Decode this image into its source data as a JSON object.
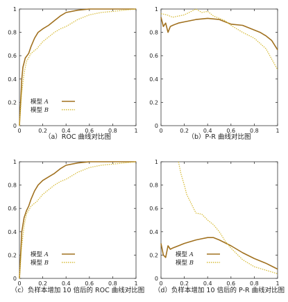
{
  "colors": {
    "A": "#a0701e",
    "B": "#d8bd3c",
    "axis": "#333333"
  },
  "legend": {
    "label_A": "模型",
    "var_A": "A",
    "label_B": "模型",
    "var_B": "B"
  },
  "chart_data": [
    {
      "type": "line",
      "caption": "（a）ROC 曲线对比图",
      "xlim": [
        0,
        1
      ],
      "ylim": [
        0,
        1
      ],
      "xticks": [
        "0",
        "0.2",
        "0.4",
        "0.6",
        "0.8",
        "1"
      ],
      "yticks": [
        "0",
        "0.2",
        "0.4",
        "0.6",
        "0.8",
        "1"
      ],
      "legend_position": "bottom-left",
      "series": [
        {
          "name": "模型 A",
          "style": "solid",
          "x": [
            0,
            0.01,
            0.02,
            0.03,
            0.05,
            0.08,
            0.1,
            0.13,
            0.16,
            0.2,
            0.25,
            0.3,
            0.35,
            0.4,
            0.5,
            0.6,
            0.7,
            0.8,
            0.9,
            1.0
          ],
          "y": [
            0.0,
            0.2,
            0.4,
            0.5,
            0.58,
            0.62,
            0.68,
            0.75,
            0.8,
            0.83,
            0.86,
            0.9,
            0.94,
            0.97,
            0.99,
            1.0,
            1.0,
            1.0,
            1.0,
            1.0
          ]
        },
        {
          "name": "模型 B",
          "style": "dotted",
          "x": [
            0,
            0.02,
            0.04,
            0.06,
            0.1,
            0.15,
            0.2,
            0.25,
            0.3,
            0.35,
            0.4,
            0.45,
            0.5,
            0.6,
            0.7,
            0.8,
            0.9,
            1.0
          ],
          "y": [
            0.0,
            0.28,
            0.45,
            0.55,
            0.62,
            0.66,
            0.72,
            0.76,
            0.8,
            0.83,
            0.85,
            0.88,
            0.91,
            0.95,
            0.97,
            0.98,
            0.99,
            1.0
          ]
        }
      ]
    },
    {
      "type": "line",
      "caption": "（b）P-R 曲线对比图",
      "xlim": [
        0,
        1
      ],
      "ylim": [
        0,
        1
      ],
      "xticks": [
        "0",
        "0.2",
        "0.4",
        "0.6",
        "0.8",
        "1"
      ],
      "yticks": [
        "0",
        "0.2",
        "0.4",
        "0.6",
        "0.8",
        "1"
      ],
      "series": [
        {
          "name": "模型 A",
          "style": "solid",
          "x": [
            0,
            0.02,
            0.04,
            0.06,
            0.08,
            0.1,
            0.15,
            0.2,
            0.3,
            0.4,
            0.5,
            0.6,
            0.7,
            0.75,
            0.8,
            0.85,
            0.9,
            0.95,
            1.0
          ],
          "y": [
            0.93,
            0.85,
            0.88,
            0.8,
            0.85,
            0.86,
            0.88,
            0.89,
            0.91,
            0.92,
            0.91,
            0.87,
            0.86,
            0.84,
            0.82,
            0.8,
            0.77,
            0.73,
            0.65
          ]
        },
        {
          "name": "模型 B",
          "style": "dotted",
          "x": [
            0,
            0.05,
            0.1,
            0.15,
            0.2,
            0.3,
            0.35,
            0.4,
            0.45,
            0.5,
            0.55,
            0.6,
            0.7,
            0.8,
            0.9,
            0.95,
            1.0
          ],
          "y": [
            0.96,
            0.95,
            0.93,
            0.94,
            0.95,
            1.0,
            0.97,
            0.98,
            0.94,
            0.92,
            0.9,
            0.86,
            0.8,
            0.75,
            0.66,
            0.57,
            0.48
          ]
        }
      ]
    },
    {
      "type": "line",
      "caption": "（c）负样本增加 10 倍后的 ROC 曲线对比图",
      "xlim": [
        0,
        1
      ],
      "ylim": [
        0,
        1
      ],
      "xticks": [
        "0",
        "0.2",
        "0.4",
        "0.6",
        "0.8",
        "1"
      ],
      "yticks": [
        "0",
        "0.2",
        "0.4",
        "0.6",
        "0.8",
        "1"
      ],
      "legend_position": "bottom-right",
      "series": [
        {
          "name": "模型 A",
          "style": "solid",
          "x": [
            0,
            0.01,
            0.02,
            0.04,
            0.06,
            0.08,
            0.1,
            0.13,
            0.16,
            0.2,
            0.25,
            0.3,
            0.35,
            0.4,
            0.5,
            0.6,
            0.7,
            0.8,
            0.9,
            1.0
          ],
          "y": [
            0.0,
            0.2,
            0.4,
            0.52,
            0.58,
            0.62,
            0.68,
            0.75,
            0.8,
            0.84,
            0.87,
            0.9,
            0.94,
            0.97,
            0.99,
            1.0,
            1.0,
            1.0,
            1.0,
            1.0
          ]
        },
        {
          "name": "模型 B",
          "style": "dotted",
          "x": [
            0,
            0.02,
            0.04,
            0.06,
            0.1,
            0.15,
            0.2,
            0.25,
            0.3,
            0.35,
            0.4,
            0.45,
            0.5,
            0.6,
            0.7,
            0.8,
            0.9,
            1.0
          ],
          "y": [
            0.0,
            0.28,
            0.45,
            0.55,
            0.62,
            0.66,
            0.72,
            0.76,
            0.8,
            0.83,
            0.85,
            0.88,
            0.91,
            0.95,
            0.97,
            0.98,
            0.99,
            1.0
          ]
        }
      ]
    },
    {
      "type": "line",
      "caption": "（d）负样本增加 10 倍后的 P-R 曲线对比图",
      "xlim": [
        0,
        1
      ],
      "ylim": [
        0,
        1
      ],
      "xticks": [
        "0",
        "0.2",
        "0.4",
        "0.6",
        "0.8",
        "1"
      ],
      "yticks": [
        "0",
        "0.2",
        "0.4",
        "0.6",
        "0.8",
        "1"
      ],
      "legend_position": "bottom-left",
      "series": [
        {
          "name": "模型 A",
          "style": "solid",
          "x": [
            0,
            0.02,
            0.04,
            0.06,
            0.08,
            0.1,
            0.15,
            0.2,
            0.3,
            0.35,
            0.4,
            0.45,
            0.5,
            0.6,
            0.7,
            0.8,
            0.9,
            1.0
          ],
          "y": [
            0.3,
            0.2,
            0.18,
            0.28,
            0.25,
            0.26,
            0.28,
            0.3,
            0.33,
            0.34,
            0.35,
            0.35,
            0.33,
            0.28,
            0.22,
            0.17,
            0.13,
            0.08
          ]
        },
        {
          "name": "模型 B",
          "style": "dotted",
          "x": [
            0.15,
            0.17,
            0.2,
            0.22,
            0.25,
            0.28,
            0.3,
            0.35,
            0.4,
            0.45,
            0.5,
            0.55,
            0.6,
            0.7,
            0.8,
            0.9,
            1.0
          ],
          "y": [
            1.0,
            0.9,
            0.8,
            0.72,
            0.66,
            0.6,
            0.56,
            0.55,
            0.5,
            0.46,
            0.4,
            0.32,
            0.26,
            0.16,
            0.1,
            0.07,
            0.04
          ]
        }
      ]
    }
  ]
}
